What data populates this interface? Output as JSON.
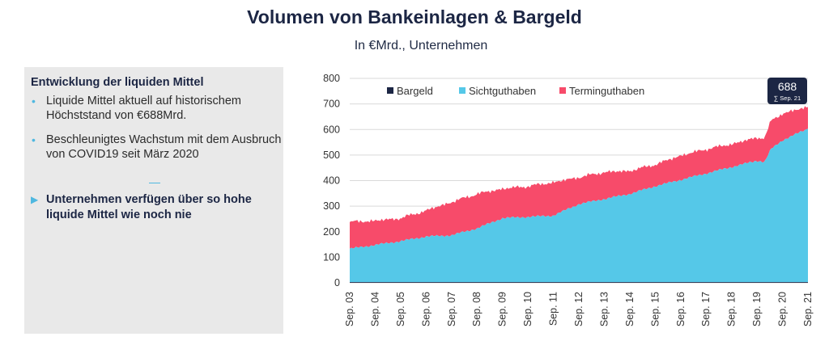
{
  "header": {
    "title": "Volumen von Bankeinlagen & Bargeld",
    "subtitle": "In €Mrd., Unternehmen"
  },
  "panel": {
    "title": "Entwicklung der liquiden Mittel",
    "bullets": [
      "Liquide Mittel aktuell auf historischem Höchststand von €688Mrd.",
      "Beschleunigtes Wachstum mit dem Ausbruch von COVID19 seit März 2020"
    ],
    "conclusion": "Unternehmen verfügen über so hohe liquide Mittel wie noch nie",
    "bullet_color": "#4fb8e0"
  },
  "chart_data": {
    "type": "area",
    "stacked": true,
    "ylim": [
      0,
      800
    ],
    "yticks": [
      0,
      100,
      200,
      300,
      400,
      500,
      600,
      700,
      800
    ],
    "xticks": [
      "Sep. 03",
      "Sep. 04",
      "Sep. 05",
      "Sep. 06",
      "Sep. 07",
      "Sep. 08",
      "Sep. 09",
      "Sep. 10",
      "Sep. 11",
      "Sep. 12",
      "Sep. 13",
      "Sep. 14",
      "Sep. 15",
      "Sep. 16",
      "Sep. 17",
      "Sep. 18",
      "Sep. 19",
      "Sep. 20",
      "Sep. 21"
    ],
    "x": [
      2003.7,
      2004.7,
      2005.7,
      2006.7,
      2007.7,
      2008.7,
      2009.7,
      2010.7,
      2011.7,
      2012.7,
      2013.7,
      2014.7,
      2015.7,
      2016.7,
      2017.7,
      2018.7,
      2019.7,
      2020.0,
      2020.25,
      2020.7,
      2021.7
    ],
    "series": [
      {
        "name": "Bargeld",
        "color": "#1c2644",
        "values": [
          3,
          3,
          3,
          3,
          3,
          3,
          3,
          3,
          3,
          3,
          3,
          3,
          3,
          3,
          3,
          3,
          3,
          3,
          3,
          3,
          3
        ]
      },
      {
        "name": "Sichtguthaben",
        "color": "#55c8e8",
        "values": [
          130,
          145,
          160,
          178,
          183,
          210,
          250,
          255,
          260,
          305,
          325,
          345,
          375,
          400,
          425,
          450,
          475,
          470,
          520,
          555,
          600
        ]
      },
      {
        "name": "Terminguthaben",
        "color": "#f74b6a",
        "values": [
          105,
          95,
          90,
          102,
          130,
          135,
          115,
          120,
          130,
          105,
          105,
          90,
          85,
          95,
          95,
          90,
          90,
          95,
          110,
          105,
          85
        ]
      }
    ],
    "legend": {
      "placement": "top-left",
      "entries": [
        "Bargeld",
        "Sichtguthaben",
        "Terminguthaben"
      ]
    },
    "annotation": {
      "value": "688",
      "label": "∑ Sep. 21"
    },
    "grid": true
  }
}
